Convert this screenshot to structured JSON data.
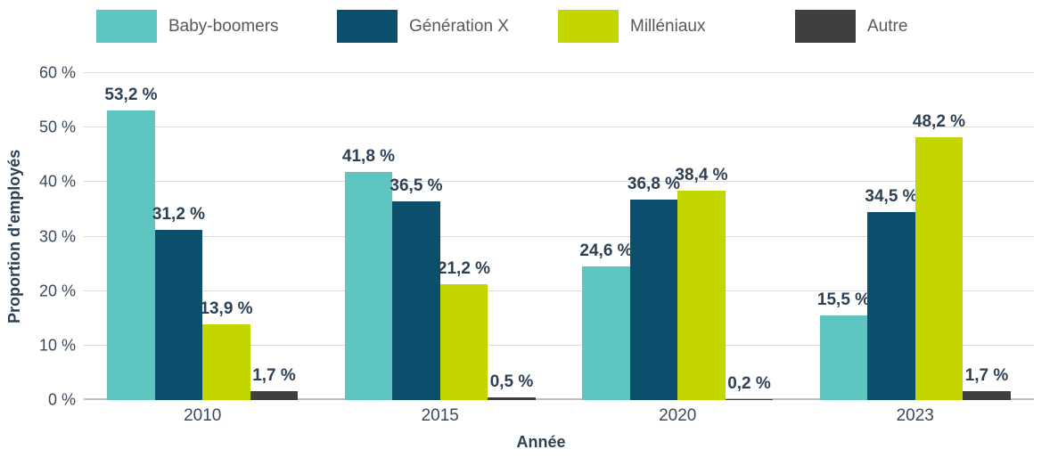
{
  "chart_data": {
    "type": "bar",
    "title": "",
    "xlabel": "Année",
    "ylabel": "Proportion d'employés",
    "categories": [
      "2010",
      "2015",
      "2020",
      "2023"
    ],
    "series": [
      {
        "name": "Baby-boomers",
        "color": "#5fc5c1",
        "values": [
          53.2,
          41.8,
          24.6,
          15.5
        ],
        "labels": [
          "53,2 %",
          "41,8 %",
          "24,6 %",
          "15,5 %"
        ]
      },
      {
        "name": "Génération X",
        "color": "#0b4f6d",
        "values": [
          31.2,
          36.5,
          36.8,
          34.5
        ],
        "labels": [
          "31,2 %",
          "36,5 %",
          "36,8 %",
          "34,5 %"
        ]
      },
      {
        "name": "Milléniaux",
        "color": "#c3d600",
        "values": [
          13.9,
          21.2,
          38.4,
          48.2
        ],
        "labels": [
          "13,9 %",
          "21,2 %",
          "38,4 %",
          "48,2 %"
        ]
      },
      {
        "name": "Autre",
        "color": "#3f3f3f",
        "values": [
          1.7,
          0.5,
          0.2,
          1.7
        ],
        "labels": [
          "1,7 %",
          "0,5 %",
          "0,2 %",
          "1,7 %"
        ]
      }
    ],
    "ylim": [
      0,
      60
    ],
    "yticks": [
      {
        "value": 0,
        "label": "0 %"
      },
      {
        "value": 10,
        "label": "10 %"
      },
      {
        "value": 20,
        "label": "20 %"
      },
      {
        "value": 30,
        "label": "30 %"
      },
      {
        "value": 40,
        "label": "40 %"
      },
      {
        "value": 50,
        "label": "50 %"
      },
      {
        "value": 60,
        "label": "60 %"
      }
    ],
    "grid": "horizontal",
    "legend_position": "top"
  },
  "colors": {
    "background": "#ffffff",
    "gridline": "#d9d9d9",
    "baseline": "#bfbfbf",
    "tick_text": "#3a4a5c",
    "value_text": "#2e4154",
    "legend_text": "#595959",
    "axis_title_text": "#2e4154"
  }
}
